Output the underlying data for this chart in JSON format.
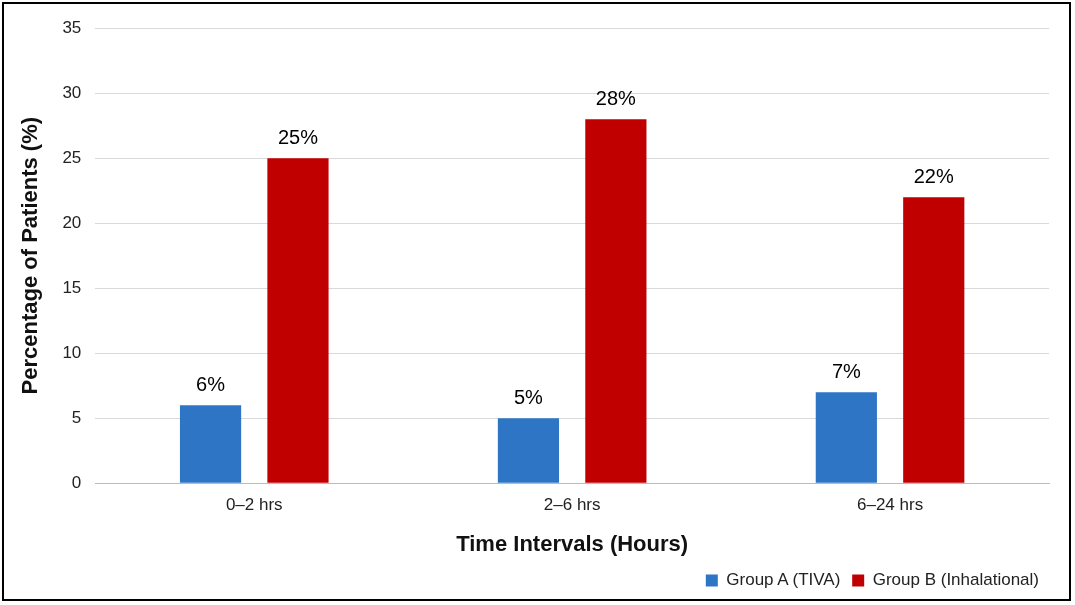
{
  "chart_data": {
    "type": "bar",
    "xlabel": "Time Intervals (Hours)",
    "ylabel": "Percentage of Patients (%)",
    "categories": [
      "0–2 hrs",
      "2–6 hrs",
      "6–24 hrs"
    ],
    "series": [
      {
        "name": "Group A (TIVA)",
        "color": "#2e75c6",
        "values": [
          6,
          5,
          7
        ],
        "value_labels": [
          "6%",
          "5%",
          "7%"
        ]
      },
      {
        "name": "Group B (Inhalational)",
        "color": "#c00000",
        "values": [
          25,
          28,
          22
        ],
        "value_labels": [
          "25%",
          "28%",
          "22%"
        ]
      }
    ],
    "ylim": [
      0,
      35
    ],
    "yticks": [
      0,
      5,
      10,
      15,
      20,
      25,
      30,
      35
    ],
    "grid": "y",
    "legend": "bottom right"
  }
}
